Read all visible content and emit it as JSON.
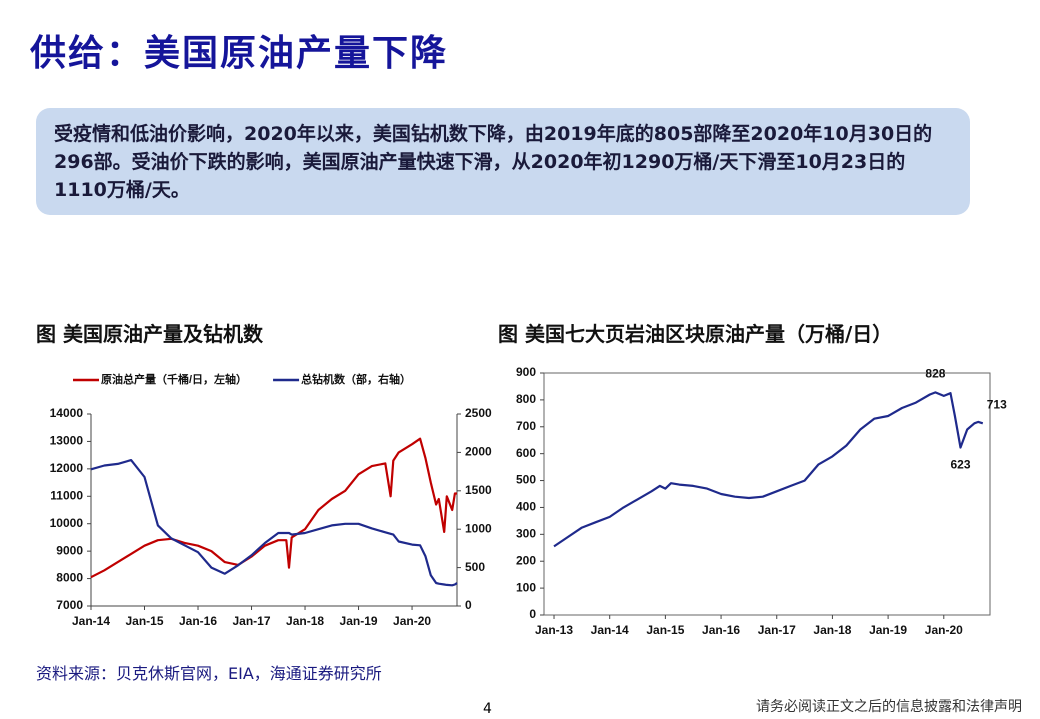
{
  "title": "供给：美国原油产量下降",
  "summary": "受疫情和低油价影响，2020年以来，美国钻机数下降，由2019年底的805部降至2020年10月30日的296部。受油价下跌的影响，美国原油产量快速下滑，从2020年初1290万桶/天下滑至10月23日的1110万桶/天。",
  "source": "资料来源：贝克休斯官网，EIA，海通证券研究所",
  "page_number": "4",
  "footer": "请务必阅读正文之后的信息披露和法律声明",
  "chart_data": [
    {
      "type": "line",
      "title": "图 美国原油产量及钻机数",
      "legend": "top",
      "x": [
        2014,
        2014.25,
        2014.5,
        2014.75,
        2015,
        2015.25,
        2015.5,
        2015.75,
        2016,
        2016.25,
        2016.5,
        2016.75,
        2017,
        2017.25,
        2017.5,
        2017.65,
        2017.7,
        2017.75,
        2018,
        2018.25,
        2018.5,
        2018.75,
        2019,
        2019.25,
        2019.5,
        2019.6,
        2019.65,
        2019.75,
        2020,
        2020.15,
        2020.25,
        2020.35,
        2020.45,
        2020.5,
        2020.6,
        2020.65,
        2020.75,
        2020.8,
        2020.84
      ],
      "series": [
        {
          "name": "原油总产量（千桶/日，左轴）",
          "color": "#c00000",
          "values": [
            8050,
            8300,
            8600,
            8900,
            9200,
            9400,
            9450,
            9300,
            9200,
            9000,
            8600,
            8500,
            8800,
            9200,
            9400,
            9400,
            8400,
            9500,
            9800,
            10500,
            10900,
            11200,
            11800,
            12100,
            12200,
            11000,
            12300,
            12600,
            12900,
            13100,
            12400,
            11500,
            10700,
            10900,
            9700,
            11000,
            10500,
            11100,
            11100
          ]
        },
        {
          "name": "总钻机数（部，右轴）",
          "color": "#1f2a8c",
          "axis": "y2",
          "values": [
            1780,
            1830,
            1850,
            1900,
            1680,
            1050,
            880,
            790,
            700,
            500,
            420,
            530,
            660,
            820,
            950,
            950,
            950,
            930,
            950,
            1000,
            1050,
            1070,
            1070,
            1010,
            960,
            940,
            930,
            840,
            800,
            790,
            650,
            400,
            300,
            290,
            280,
            275,
            270,
            280,
            300
          ]
        }
      ],
      "xlim": [
        2014,
        2020.84
      ],
      "xticks": [
        {
          "value": 2014,
          "label": "Jan-14"
        },
        {
          "value": 2015,
          "label": "Jan-15"
        },
        {
          "value": 2016,
          "label": "Jan-16"
        },
        {
          "value": 2017,
          "label": "Jan-17"
        },
        {
          "value": 2018,
          "label": "Jan-18"
        },
        {
          "value": 2019,
          "label": "Jan-19"
        },
        {
          "value": 2020,
          "label": "Jan-20"
        }
      ],
      "ylim": [
        7000,
        14000
      ],
      "yticks": [
        7000,
        8000,
        9000,
        10000,
        11000,
        12000,
        13000,
        14000
      ],
      "y2lim": [
        0,
        2500
      ],
      "y2ticks": [
        0,
        500,
        1000,
        1500,
        2000,
        2500
      ]
    },
    {
      "type": "line",
      "title": "图 美国七大页岩油区块原油产量（万桶/日）",
      "frame": true,
      "x": [
        2013,
        2013.25,
        2013.5,
        2013.75,
        2014,
        2014.25,
        2014.5,
        2014.75,
        2014.9,
        2015,
        2015.1,
        2015.25,
        2015.5,
        2015.75,
        2016,
        2016.25,
        2016.5,
        2016.75,
        2017,
        2017.25,
        2017.5,
        2017.75,
        2018,
        2018.25,
        2018.5,
        2018.75,
        2019,
        2019.25,
        2019.5,
        2019.75,
        2019.85,
        2020,
        2020.12,
        2020.2,
        2020.3,
        2020.42,
        2020.55,
        2020.62,
        2020.7
      ],
      "series": [
        {
          "color": "#1f2a8c",
          "values": [
            255,
            290,
            325,
            345,
            365,
            400,
            430,
            460,
            480,
            470,
            490,
            485,
            480,
            470,
            450,
            440,
            435,
            440,
            460,
            480,
            500,
            560,
            590,
            630,
            690,
            730,
            740,
            770,
            790,
            820,
            828,
            815,
            825,
            740,
            623,
            690,
            713,
            718,
            713
          ],
          "labeled_points": [
            30,
            34,
            38
          ]
        }
      ],
      "xlim": [
        2012.82,
        2020.83
      ],
      "xticks": [
        {
          "value": 2013,
          "label": "Jan-13"
        },
        {
          "value": 2014,
          "label": "Jan-14"
        },
        {
          "value": 2015,
          "label": "Jan-15"
        },
        {
          "value": 2016,
          "label": "Jan-16"
        },
        {
          "value": 2017,
          "label": "Jan-17"
        },
        {
          "value": 2018,
          "label": "Jan-18"
        },
        {
          "value": 2019,
          "label": "Jan-19"
        },
        {
          "value": 2020,
          "label": "Jan-20"
        }
      ],
      "ylim": [
        0,
        900
      ],
      "yticks": [
        0,
        100,
        200,
        300,
        400,
        500,
        600,
        700,
        800,
        900
      ]
    }
  ]
}
